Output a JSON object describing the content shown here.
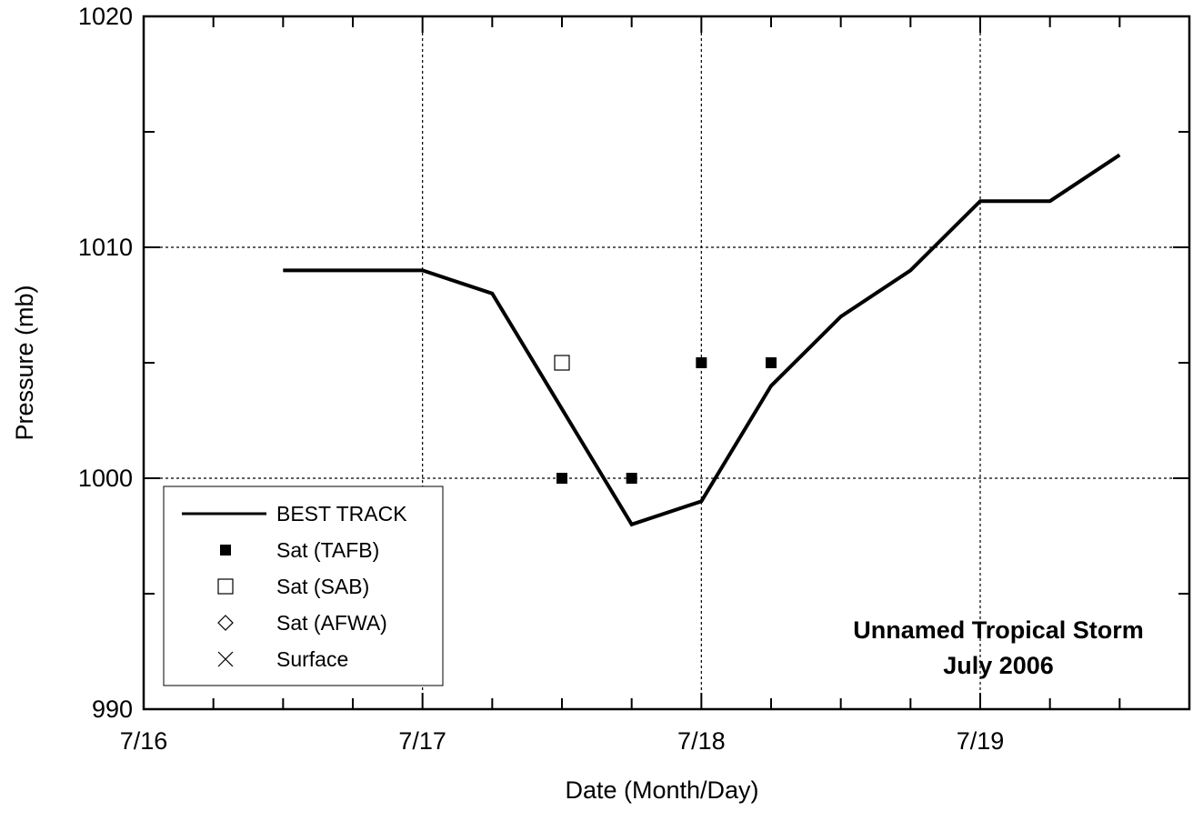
{
  "chart_data": {
    "type": "line",
    "title": "",
    "xlabel": "Date (Month/Day)",
    "ylabel": "Pressure (mb)",
    "x_unit": "days",
    "xlim": [
      "7/16 00Z",
      "7/19 18Z"
    ],
    "ylim": [
      990,
      1020
    ],
    "x_ticks": [
      "7/16",
      "7/17",
      "7/18",
      "7/19"
    ],
    "y_ticks": [
      "990",
      "1000",
      "1010",
      "1020"
    ],
    "grid": true,
    "legend_position": "bottom-left",
    "legend": [
      "BEST TRACK",
      "Sat (TAFB)",
      "Sat (SAB)",
      "Sat (AFWA)",
      "Surface"
    ],
    "annotation": [
      "Unnamed Tropical Storm",
      "July 2006"
    ],
    "series": [
      {
        "name": "BEST TRACK",
        "style": "line",
        "points": [
          [
            "7/16 12Z",
            1009
          ],
          [
            "7/17 00Z",
            1009
          ],
          [
            "7/17 06Z",
            1008
          ],
          [
            "7/17 12Z",
            1003
          ],
          [
            "7/17 18Z",
            998
          ],
          [
            "7/18 00Z",
            999
          ],
          [
            "7/18 06Z",
            1004
          ],
          [
            "7/18 12Z",
            1007
          ],
          [
            "7/18 18Z",
            1009
          ],
          [
            "7/19 00Z",
            1012
          ],
          [
            "7/19 06Z",
            1012
          ],
          [
            "7/19 12Z",
            1014
          ]
        ]
      },
      {
        "name": "Sat (TAFB)",
        "style": "filled-square",
        "points": [
          [
            "7/17 12Z",
            1000
          ],
          [
            "7/17 18Z",
            1000
          ],
          [
            "7/18 00Z",
            1005
          ],
          [
            "7/18 06Z",
            1005
          ]
        ]
      },
      {
        "name": "Sat (SAB)",
        "style": "open-square",
        "points": [
          [
            "7/17 12Z",
            1005
          ]
        ]
      },
      {
        "name": "Sat (AFWA)",
        "style": "open-diamond",
        "points": []
      },
      {
        "name": "Surface",
        "style": "x",
        "points": []
      }
    ]
  }
}
